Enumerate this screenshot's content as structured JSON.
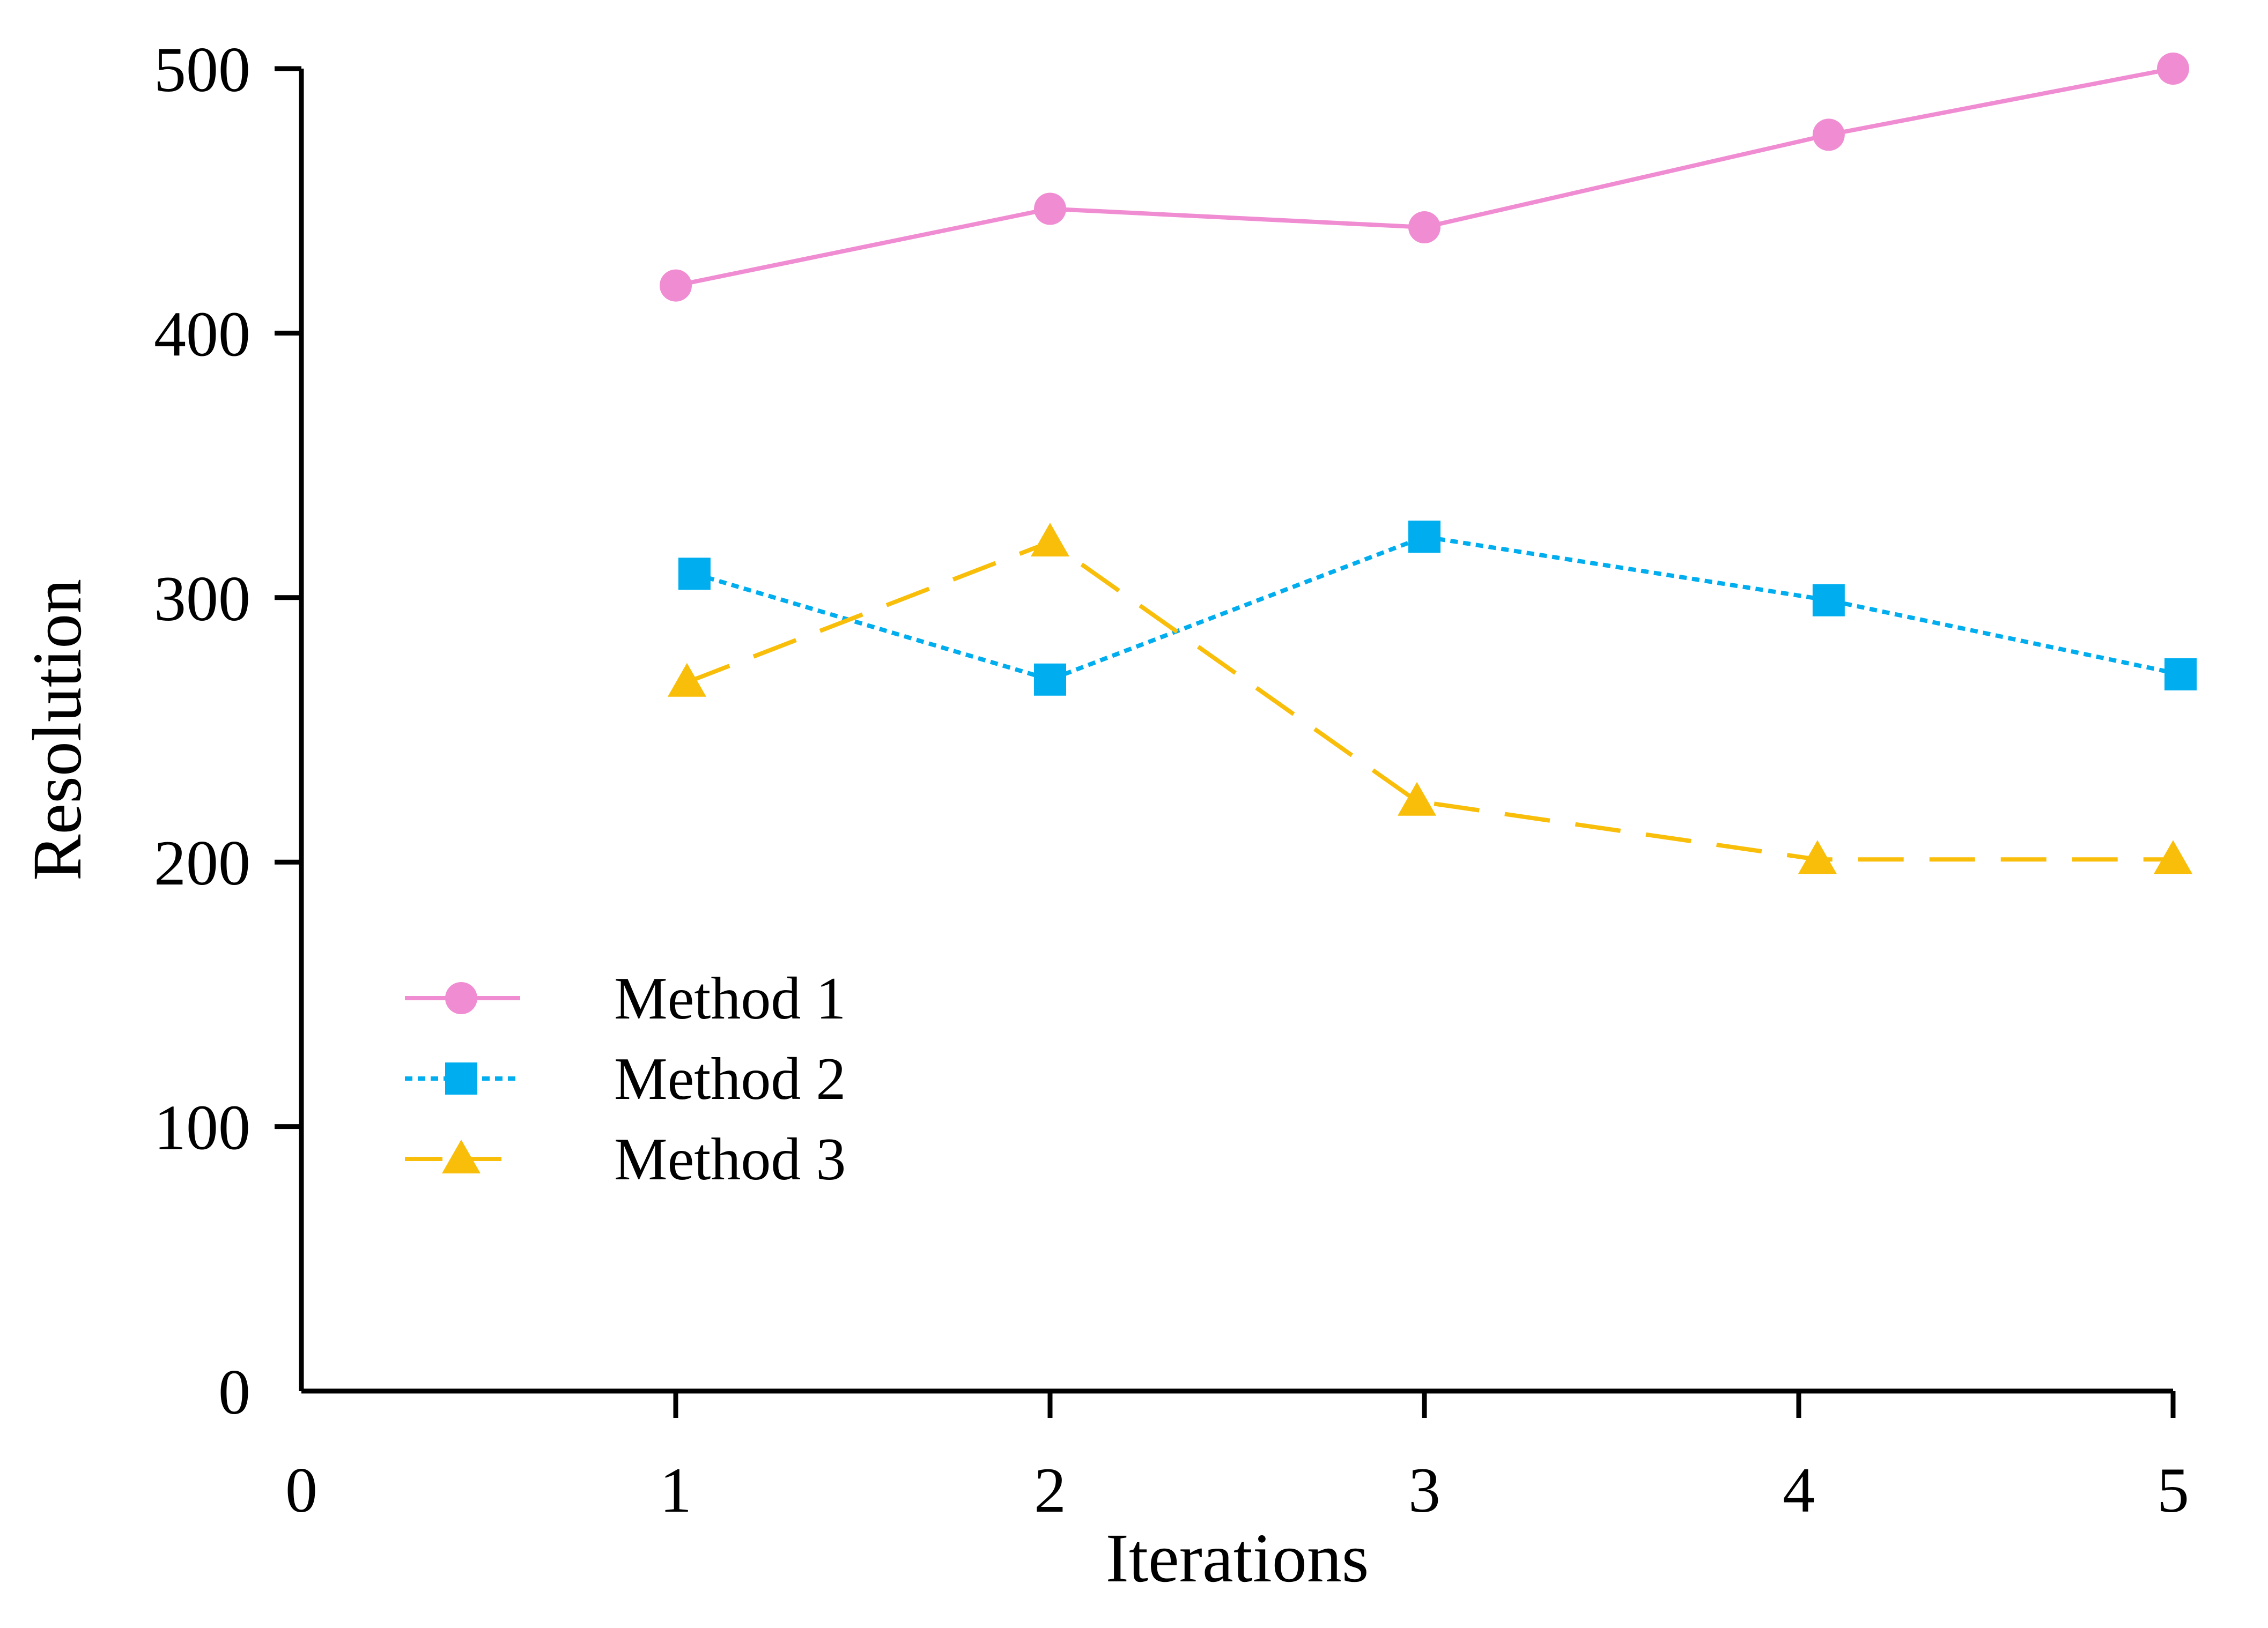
{
  "chart_data": {
    "type": "line",
    "title": "",
    "xlabel": "Iterations",
    "ylabel": "Resolution",
    "xlim": [
      0,
      5
    ],
    "ylim": [
      0,
      500
    ],
    "x_ticks": [
      "0",
      "1",
      "2",
      "3",
      "4",
      "5"
    ],
    "y_ticks": [
      "0",
      "100",
      "200",
      "300",
      "400",
      "500"
    ],
    "grid": false,
    "legend_position": "lower-left",
    "series": [
      {
        "name": "Method 1",
        "color": "#F08CD2",
        "marker": "circle",
        "line_style": "solid",
        "x": [
          1.0,
          2.0,
          3.0,
          4.08,
          5.0
        ],
        "y": [
          418,
          447,
          440,
          475,
          500
        ]
      },
      {
        "name": "Method 2",
        "color": "#00AEEF",
        "marker": "square",
        "line_style": "dotted",
        "x": [
          1.05,
          2.0,
          3.0,
          4.08,
          5.02
        ],
        "y": [
          309,
          269,
          323,
          299,
          271
        ]
      },
      {
        "name": "Method 3",
        "color": "#F8BE0A",
        "marker": "triangle",
        "line_style": "dashed",
        "x": [
          1.03,
          2.0,
          2.98,
          4.05,
          5.0
        ],
        "y": [
          268,
          321,
          223,
          201,
          201
        ]
      }
    ]
  }
}
